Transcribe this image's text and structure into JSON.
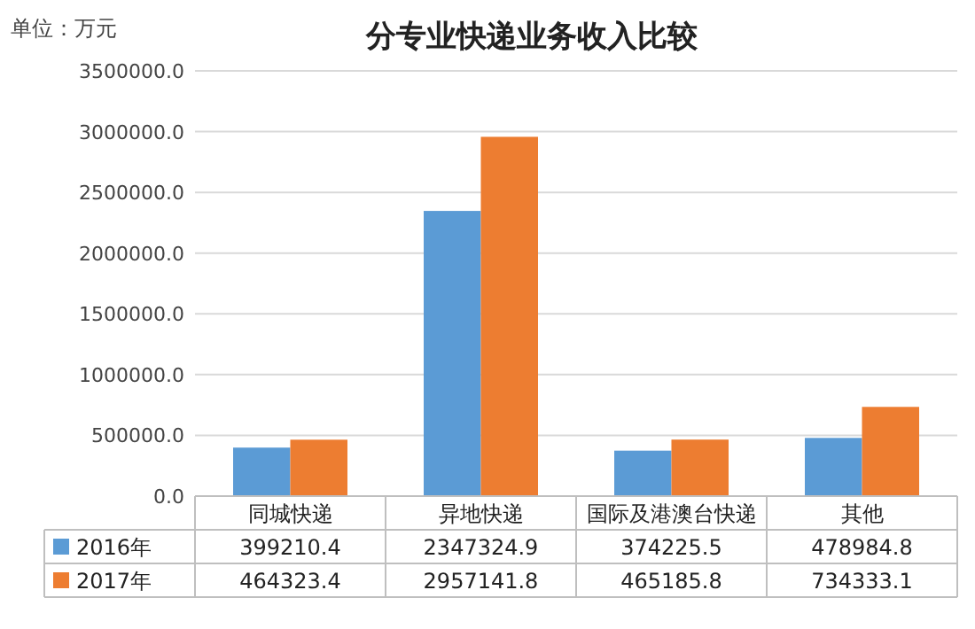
{
  "chart_data": {
    "type": "bar",
    "title": "分专业快递业务收入比较",
    "ylabel": "单位：万元",
    "categories": [
      "同城快递",
      "异地快递",
      "国际及港澳台快递",
      "其他"
    ],
    "series": [
      {
        "name": "2016年",
        "color": "#5b9bd5",
        "values": [
          399210.4,
          2347324.9,
          374225.5,
          478984.8
        ]
      },
      {
        "name": "2017年",
        "color": "#ed7d31",
        "values": [
          464323.4,
          2957141.8,
          465185.8,
          734333.1
        ]
      }
    ],
    "ylim": [
      0,
      3500000
    ],
    "yticks": [
      {
        "value": 0,
        "label": "0.0"
      },
      {
        "value": 500000,
        "label": "500000.0"
      },
      {
        "value": 1000000,
        "label": "1000000.0"
      },
      {
        "value": 1500000,
        "label": "1500000.0"
      },
      {
        "value": 2000000,
        "label": "2000000.0"
      },
      {
        "value": 2500000,
        "label": "2500000.0"
      },
      {
        "value": 3000000,
        "label": "3000000.0"
      },
      {
        "value": 3500000,
        "label": "3500000.0"
      }
    ],
    "grid": "y",
    "legend": "bottom",
    "data_labels": true
  }
}
